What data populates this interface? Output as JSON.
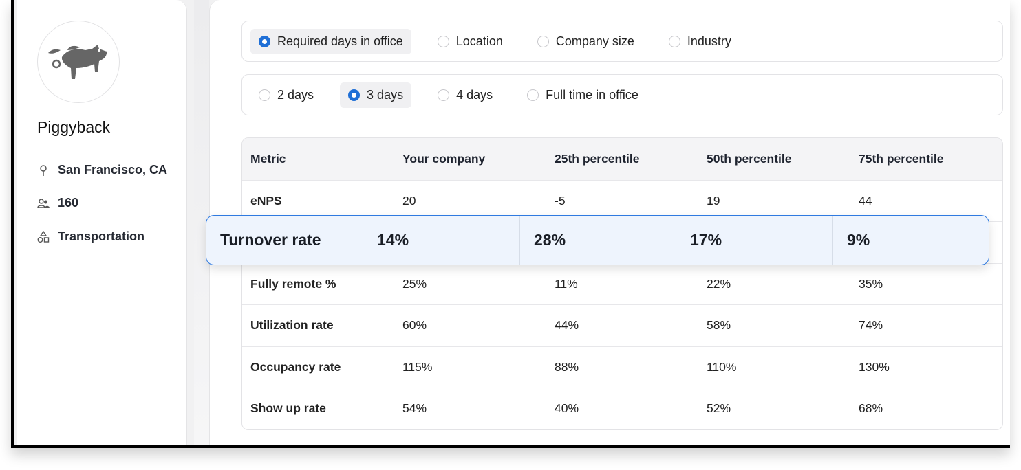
{
  "company": {
    "name": "Piggyback",
    "location": "San Francisco, CA",
    "employees": "160",
    "industry": "Transportation"
  },
  "filter_groups": [
    {
      "options": [
        "Required days in office",
        "Location",
        "Company size",
        "Industry"
      ],
      "selected": 0
    },
    {
      "options": [
        "2 days",
        "3 days",
        "4 days",
        "Full time in office"
      ],
      "selected": 1
    }
  ],
  "table": {
    "headers": [
      "Metric",
      "Your company",
      "25th percentile",
      "50th percentile",
      "75th percentile"
    ],
    "rows": [
      [
        "eNPS",
        "20",
        "-5",
        "19",
        "44"
      ],
      [
        "Turnover rate",
        "14%",
        "28%",
        "17%",
        "9%"
      ],
      [
        "Fully remote %",
        "25%",
        "11%",
        "22%",
        "35%"
      ],
      [
        "Utilization rate",
        "60%",
        "44%",
        "58%",
        "74%"
      ],
      [
        "Occupancy rate",
        "115%",
        "88%",
        "110%",
        "130%"
      ],
      [
        "Show up rate",
        "54%",
        "40%",
        "52%",
        "68%"
      ]
    ],
    "highlighted_row": 1
  },
  "colors": {
    "accent": "#1f6fd6",
    "highlight_bg": "#eef4fd"
  }
}
